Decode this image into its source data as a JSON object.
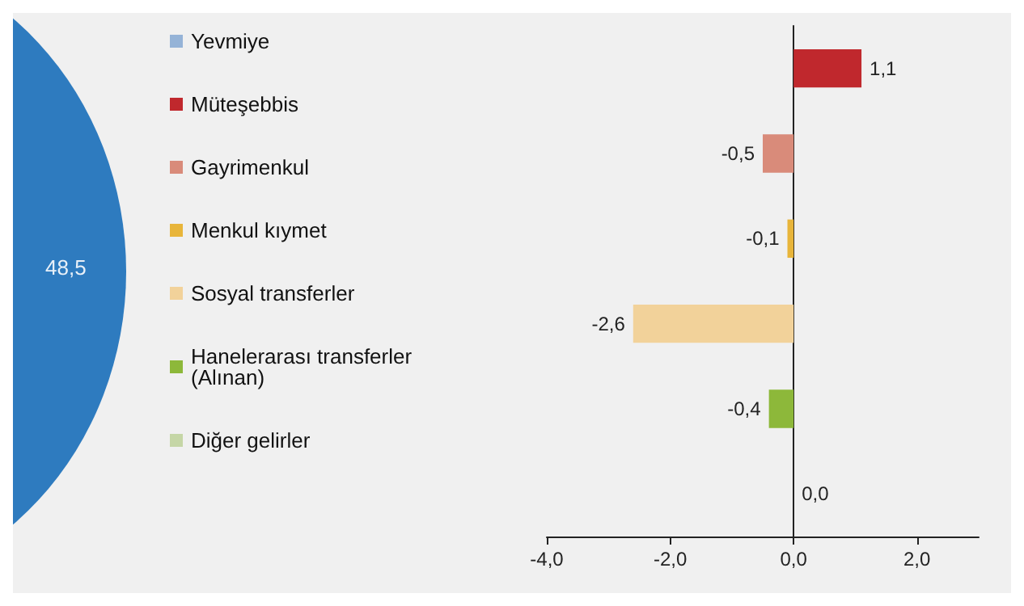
{
  "chart_data": {
    "type": "bar",
    "orientation": "horizontal",
    "stacked": true,
    "categories": [
      null,
      null,
      null,
      null,
      null,
      null
    ],
    "series": [
      {
        "name": "Yevmiye",
        "color": "#95b3d7",
        "values": [
          null,
          null,
          null,
          null,
          null,
          null
        ],
        "value_labels": [
          null,
          null,
          null,
          null,
          null,
          null
        ]
      },
      {
        "name": "Müteşebbis",
        "color": "#c0282d",
        "values": [
          1.1,
          null,
          null,
          null,
          null,
          null
        ],
        "value_labels": [
          "1,1",
          null,
          null,
          null,
          null,
          null
        ]
      },
      {
        "name": "Gayrimenkul",
        "color": "#d98b7a",
        "values": [
          null,
          -0.5,
          null,
          null,
          null,
          null
        ],
        "value_labels": [
          null,
          "-0,5",
          null,
          null,
          null,
          null
        ]
      },
      {
        "name": "Menkul kıymet",
        "color": "#e8b53a",
        "values": [
          null,
          null,
          -0.1,
          null,
          null,
          null
        ],
        "value_labels": [
          null,
          null,
          "-0,1",
          null,
          null,
          null
        ]
      },
      {
        "name": "Sosyal transferler",
        "color": "#f2d29a",
        "values": [
          null,
          null,
          null,
          -2.6,
          null,
          null
        ],
        "value_labels": [
          null,
          null,
          null,
          "-2,6",
          null,
          null
        ]
      },
      {
        "name": "Hanelerarası transferler (Alınan)",
        "color": "#8db83a",
        "values": [
          null,
          null,
          null,
          null,
          -0.4,
          null
        ],
        "value_labels": [
          null,
          null,
          null,
          null,
          "-0,4",
          null
        ]
      },
      {
        "name": "Diğer gelirler",
        "color": "#c5d6a6",
        "values": [
          null,
          null,
          null,
          null,
          null,
          0.0
        ],
        "value_labels": [
          null,
          null,
          null,
          null,
          null,
          "0,0"
        ]
      }
    ],
    "xlim": [
      -4,
      3
    ],
    "xticks": [
      {
        "value": -4,
        "label": "-4,0"
      },
      {
        "value": -2,
        "label": "-2,0"
      },
      {
        "value": 0,
        "label": "0,0"
      },
      {
        "value": 2,
        "label": "2,0"
      }
    ],
    "legend": "left",
    "annotations": [
      "48,5"
    ]
  }
}
